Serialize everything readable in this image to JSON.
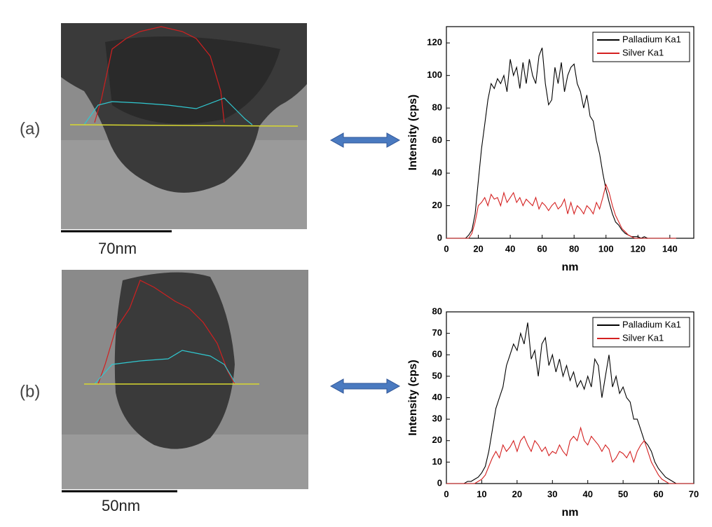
{
  "chart_data": [
    {
      "type": "line",
      "xlabel": "nm",
      "ylabel": "Intensity (cps)",
      "x": [
        0,
        2,
        4,
        6,
        8,
        10,
        12,
        14,
        16,
        18,
        20,
        22,
        24,
        26,
        28,
        30,
        32,
        34,
        36,
        38,
        40,
        42,
        44,
        46,
        48,
        50,
        52,
        54,
        56,
        58,
        60,
        62,
        64,
        66,
        68,
        70,
        72,
        74,
        76,
        78,
        80,
        82,
        84,
        86,
        88,
        90,
        92,
        94,
        96,
        98,
        100,
        102,
        104,
        106,
        108,
        110,
        112,
        114,
        116,
        118,
        120,
        122,
        124,
        126,
        128,
        130,
        132,
        134,
        136,
        138,
        140,
        142,
        144
      ],
      "series": [
        {
          "name": "Palladium Ka1",
          "color": "#000000",
          "values": [
            0,
            0,
            0,
            0,
            0,
            0,
            0,
            2,
            5,
            15,
            35,
            55,
            70,
            85,
            95,
            92,
            98,
            95,
            100,
            90,
            110,
            100,
            105,
            92,
            108,
            95,
            110,
            100,
            95,
            112,
            117,
            95,
            82,
            85,
            105,
            95,
            108,
            90,
            100,
            105,
            107,
            95,
            90,
            80,
            88,
            75,
            72,
            60,
            52,
            40,
            30,
            22,
            15,
            10,
            8,
            5,
            3,
            2,
            1,
            1,
            1,
            0,
            1,
            0,
            0,
            0,
            0,
            0,
            0,
            0,
            0,
            0,
            0
          ]
        },
        {
          "name": "Silver Ka1",
          "color": "#d42020",
          "values": [
            0,
            0,
            0,
            0,
            0,
            0,
            0,
            0,
            3,
            10,
            20,
            22,
            25,
            20,
            27,
            24,
            25,
            20,
            28,
            22,
            25,
            28,
            22,
            25,
            20,
            24,
            22,
            20,
            25,
            18,
            22,
            20,
            17,
            20,
            22,
            18,
            20,
            24,
            15,
            22,
            15,
            20,
            18,
            15,
            20,
            18,
            15,
            22,
            18,
            25,
            33,
            28,
            20,
            14,
            10,
            6,
            4,
            2,
            1,
            0,
            0,
            0,
            0,
            0,
            0,
            0,
            0,
            0,
            0,
            0,
            0,
            0,
            0
          ]
        }
      ],
      "xlim": [
        0,
        155
      ],
      "ylim": [
        0,
        130
      ],
      "xticks": [
        0,
        20,
        40,
        60,
        80,
        100,
        120,
        140
      ],
      "yticks": [
        0,
        20,
        40,
        60,
        80,
        100,
        120
      ],
      "legend": "upper right"
    },
    {
      "type": "line",
      "xlabel": "nm",
      "ylabel": "Intensity (cps)",
      "x": [
        0,
        1,
        2,
        3,
        4,
        5,
        6,
        7,
        8,
        9,
        10,
        11,
        12,
        13,
        14,
        15,
        16,
        17,
        18,
        19,
        20,
        21,
        22,
        23,
        24,
        25,
        26,
        27,
        28,
        29,
        30,
        31,
        32,
        33,
        34,
        35,
        36,
        37,
        38,
        39,
        40,
        41,
        42,
        43,
        44,
        45,
        46,
        47,
        48,
        49,
        50,
        51,
        52,
        53,
        54,
        55,
        56,
        57,
        58,
        59,
        60,
        61,
        62,
        63,
        64,
        65,
        66,
        67,
        68,
        69,
        70
      ],
      "series": [
        {
          "name": "Palladium Ka1",
          "color": "#000000",
          "values": [
            0,
            0,
            0,
            0,
            0,
            0,
            1,
            1,
            2,
            3,
            5,
            8,
            15,
            25,
            35,
            40,
            45,
            55,
            60,
            65,
            62,
            70,
            65,
            75,
            58,
            62,
            50,
            65,
            68,
            55,
            60,
            52,
            58,
            50,
            55,
            48,
            52,
            45,
            48,
            44,
            50,
            45,
            58,
            55,
            40,
            50,
            60,
            45,
            50,
            42,
            45,
            40,
            38,
            30,
            30,
            25,
            20,
            18,
            15,
            10,
            7,
            5,
            3,
            2,
            1,
            0,
            0,
            0,
            0,
            0,
            0
          ]
        },
        {
          "name": "Silver Ka1",
          "color": "#d42020",
          "values": [
            0,
            0,
            0,
            0,
            0,
            0,
            0,
            0,
            0,
            1,
            2,
            4,
            8,
            12,
            15,
            12,
            18,
            15,
            17,
            20,
            15,
            20,
            22,
            18,
            15,
            20,
            18,
            15,
            17,
            13,
            15,
            14,
            18,
            15,
            13,
            20,
            22,
            20,
            26,
            20,
            18,
            22,
            20,
            18,
            15,
            18,
            16,
            10,
            12,
            15,
            14,
            12,
            15,
            10,
            15,
            18,
            20,
            15,
            10,
            7,
            4,
            2,
            1,
            0,
            0,
            0,
            0,
            0,
            0,
            0,
            0
          ]
        }
      ],
      "xlim": [
        0,
        70
      ],
      "ylim": [
        0,
        80
      ],
      "xticks": [
        0,
        10,
        20,
        30,
        40,
        50,
        60,
        70
      ],
      "yticks": [
        0,
        10,
        20,
        30,
        40,
        50,
        60,
        70,
        80
      ],
      "legend": "upper right"
    }
  ],
  "panels": [
    {
      "label": "(a)",
      "scale_bar": "70nm"
    },
    {
      "label": "(b)",
      "scale_bar": "50nm"
    }
  ]
}
